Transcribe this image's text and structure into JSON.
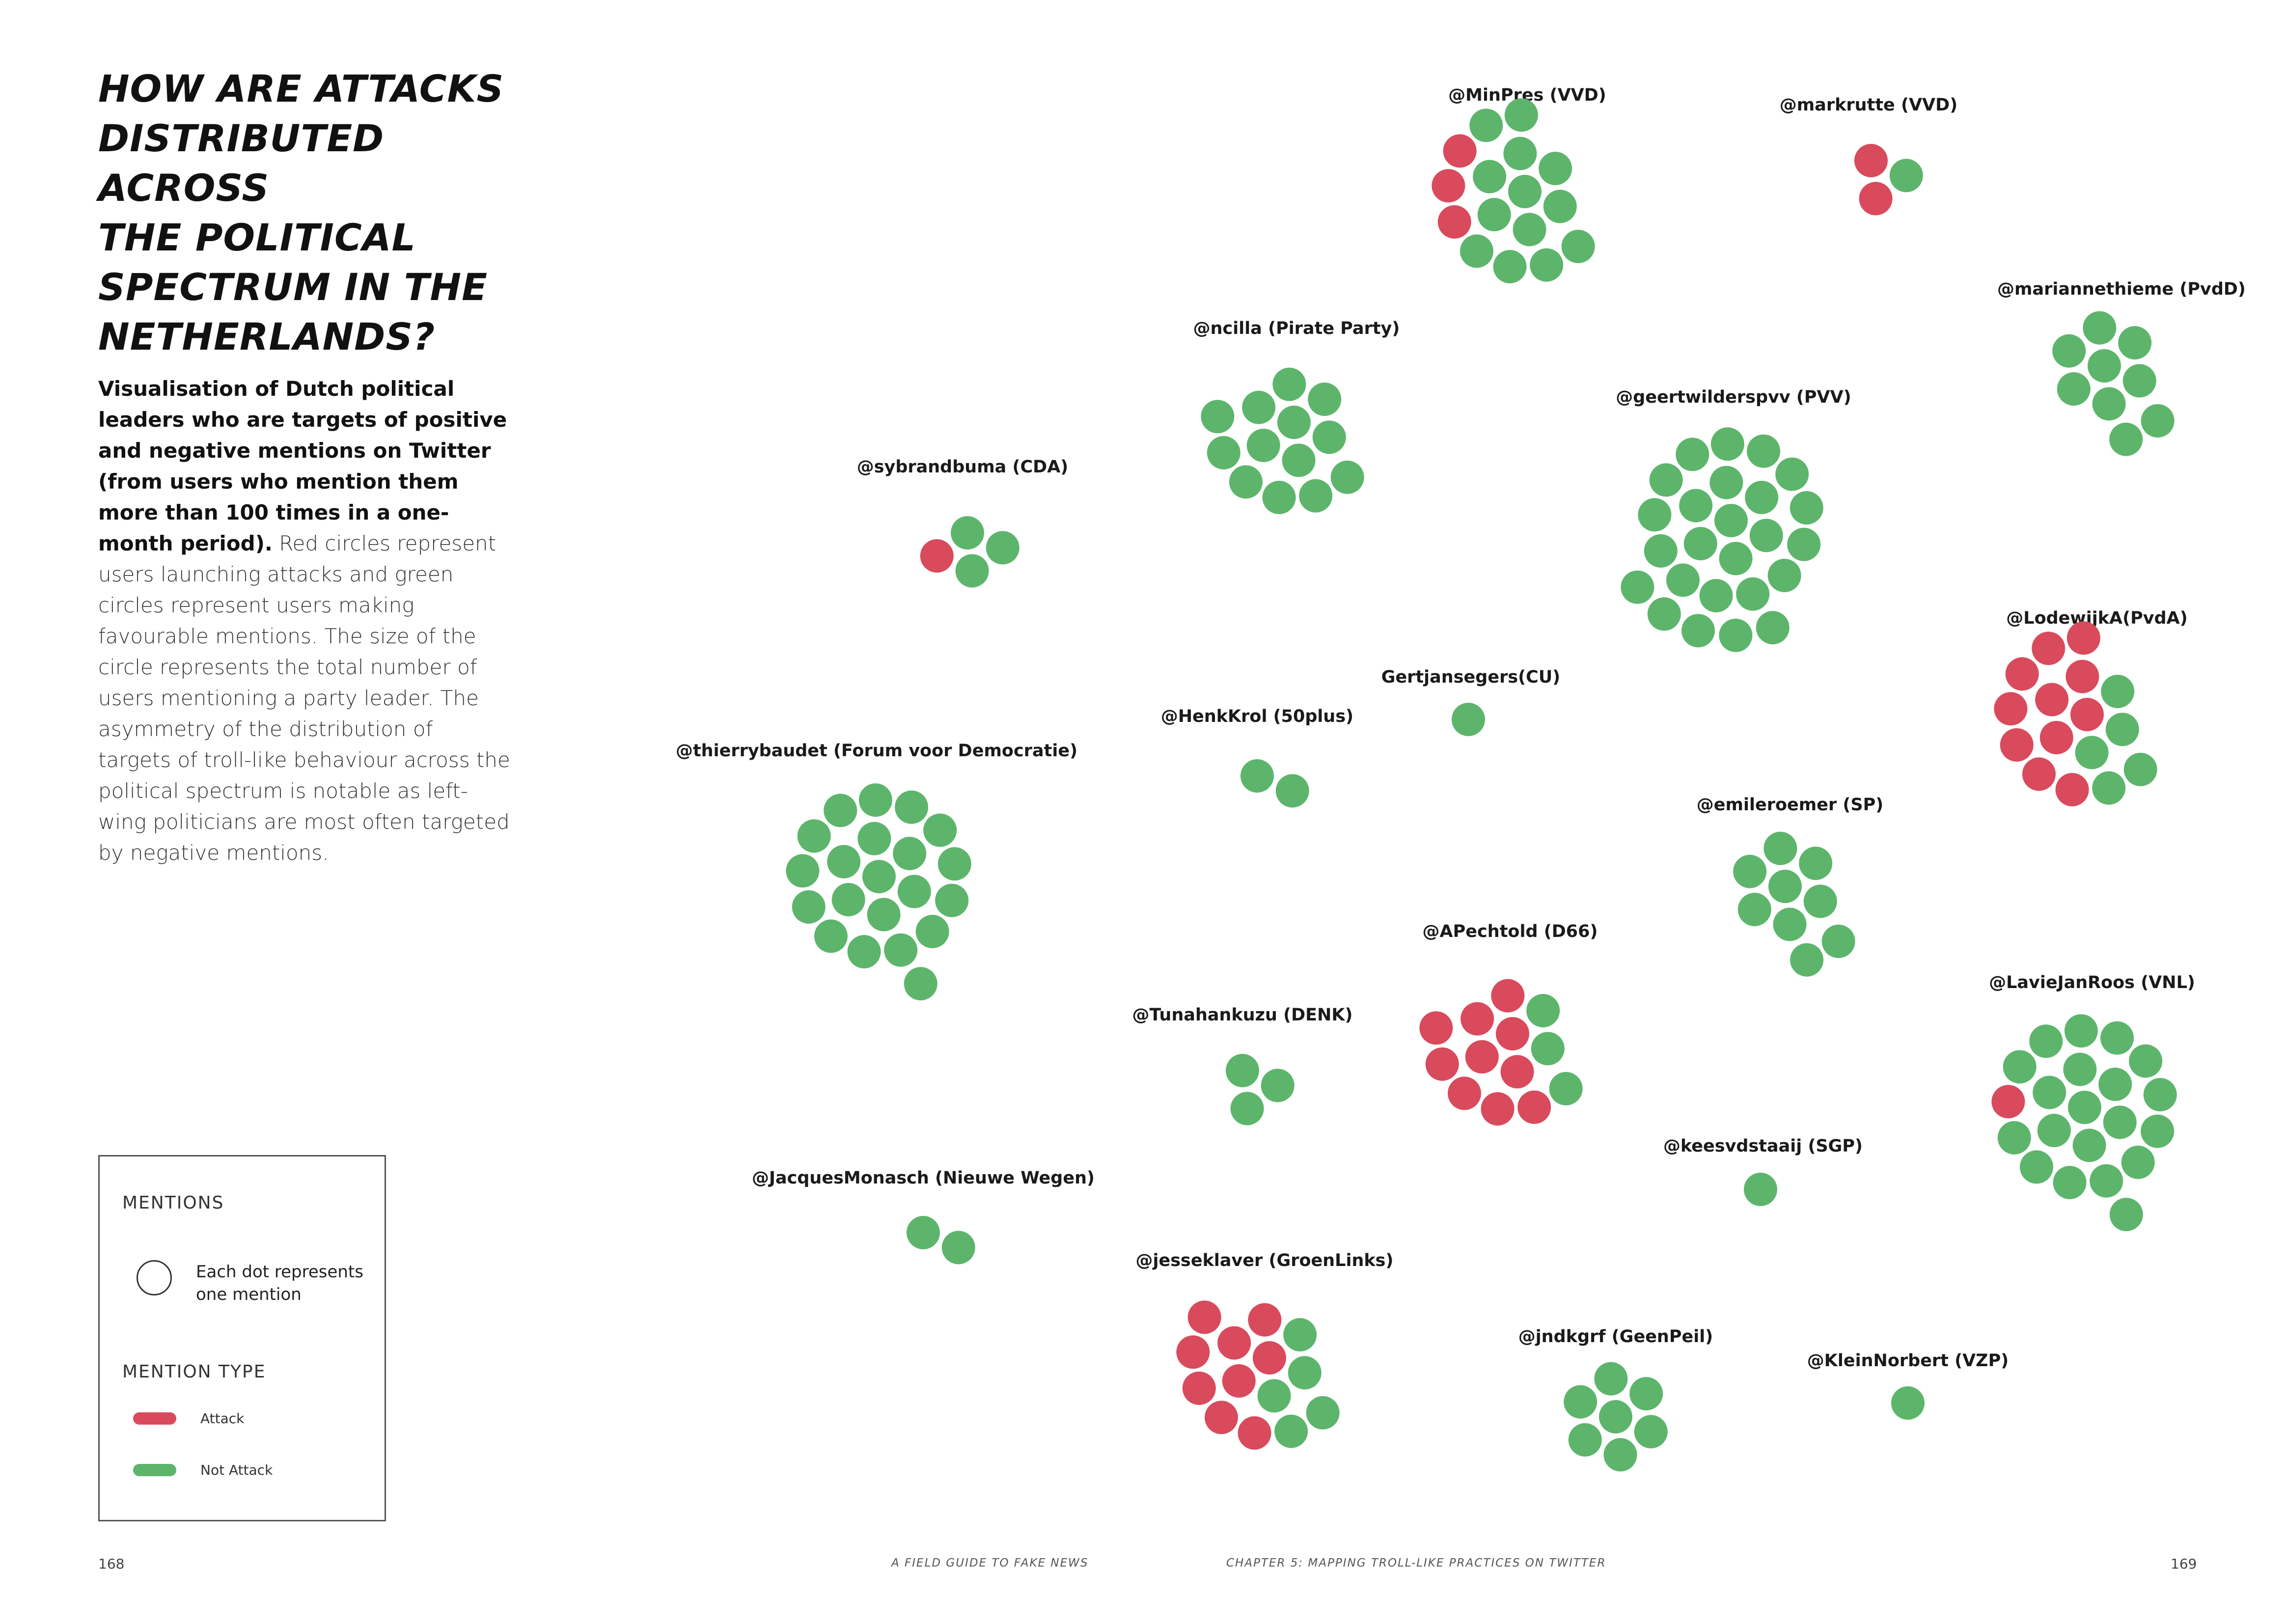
{
  "heading": {
    "line1": "HOW ARE ATTACKS",
    "line2": "DISTRIBUTED ACROSS",
    "line3": "THE POLITICAL",
    "line4": "SPECTRUM IN THE",
    "line5": "NETHERLANDS?"
  },
  "intro": {
    "bold": "Visualisation of Dutch political leaders who are targets of positive and negative mentions on Twitter (from users who mention them more than 100 times in a one-month period).",
    "body": "Red circles represent users launching attacks and green circles represent users making favourable mentions. The size of the circle represents the total number of users mentioning a party leader. The asymmetry of the distribution of targets of troll-like behaviour across the political spectrum is notable as left-wing politicians are most often targeted by negative mentions."
  },
  "legend": {
    "mentions_heading": "MENTIONS",
    "dot_text": "Each dot represents one mention",
    "type_heading": "MENTION TYPE",
    "attack_label": "Attack",
    "not_attack_label": "Not Attack"
  },
  "colors": {
    "attack": "#d94a5c",
    "not_attack": "#5db56c"
  },
  "chart_data": {
    "type": "packed-dot-clusters",
    "series": [
      {
        "name": "Attack"
      },
      {
        "name": "Not Attack"
      }
    ],
    "clusters": [
      {
        "label": "@MinPres (VVD)",
        "attack": 3,
        "not_attack": 13
      },
      {
        "label": "@markrutte (VVD)",
        "attack": 2,
        "not_attack": 1
      },
      {
        "label": "@mariannethieme (PvdD)",
        "attack": 0,
        "not_attack": 9
      },
      {
        "label": "@ncilla (Pirate Party)",
        "attack": 0,
        "not_attack": 13
      },
      {
        "label": "@geertwilderspvv (PVV)",
        "attack": 0,
        "not_attack": 25
      },
      {
        "label": "@sybrandbuma (CDA)",
        "attack": 1,
        "not_attack": 3
      },
      {
        "label": "@LodewijkA(PvdA)",
        "attack": 11,
        "not_attack": 5
      },
      {
        "label": "Gertjansegers(CU)",
        "attack": 0,
        "not_attack": 1
      },
      {
        "label": "@HenkKrol (50plus)",
        "attack": 0,
        "not_attack": 2
      },
      {
        "label": "@thierrybaudet (Forum voor Democratie)",
        "attack": 0,
        "not_attack": 21
      },
      {
        "label": "@emileroemer (SP)",
        "attack": 0,
        "not_attack": 9
      },
      {
        "label": "@APechtold (D66)",
        "attack": 10,
        "not_attack": 3
      },
      {
        "label": "@Tunahankuzu (DENK)",
        "attack": 0,
        "not_attack": 3
      },
      {
        "label": "@LavieJanRoos (VNL)",
        "attack": 1,
        "not_attack": 20
      },
      {
        "label": "@keesvdstaaij (SGP)",
        "attack": 0,
        "not_attack": 1
      },
      {
        "label": "@JacquesMonasch (Nieuwe Wegen)",
        "attack": 0,
        "not_attack": 2
      },
      {
        "label": "@jesseklaver (GroenLinks)",
        "attack": 9,
        "not_attack": 5
      },
      {
        "label": "@jndkgrf (GeenPeil)",
        "attack": 0,
        "not_attack": 7
      },
      {
        "label": "@KleinNorbert (VZP)",
        "attack": 0,
        "not_attack": 1
      }
    ]
  },
  "footer": {
    "page_left": "168",
    "running_left": "A FIELD GUIDE TO FAKE NEWS",
    "running_right": "CHAPTER 5: MAPPING TROLL-LIKE PRACTICES ON TWITTER",
    "page_right": "169"
  }
}
